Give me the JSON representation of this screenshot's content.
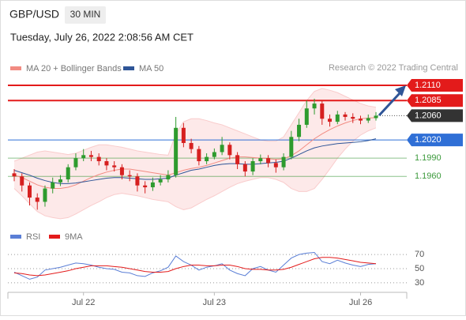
{
  "chart_data": {
    "type": "candlestick",
    "title": "GBP/USD",
    "interval": "30 MIN",
    "subtitle": "Tuesday, July 26, 2022 2:08:56 AM CET",
    "credit": "Research © 2022 Trading Central",
    "legend": [
      {
        "name": "MA 20 + Bollinger Bands",
        "color": "#f28b82"
      },
      {
        "name": "MA 50",
        "color": "#2f5597"
      }
    ],
    "categories": [
      null,
      null,
      null,
      null,
      null,
      null,
      null,
      null,
      null,
      "Jul 22",
      null,
      null,
      null,
      null,
      null,
      null,
      null,
      null,
      null,
      null,
      null,
      null,
      null,
      null,
      null,
      null,
      "Jul 23",
      null,
      null,
      null,
      null,
      null,
      null,
      null,
      null,
      null,
      null,
      null,
      null,
      null,
      null,
      null,
      null,
      null,
      null,
      "Jul 26",
      null,
      null
    ],
    "open": [
      1.1965,
      1.196,
      1.1945,
      1.1925,
      1.1918,
      1.194,
      1.195,
      1.1955,
      1.1975,
      1.199,
      1.1995,
      1.1992,
      1.1985,
      1.1978,
      1.1975,
      1.1962,
      1.196,
      1.1945,
      1.1942,
      1.195,
      1.1955,
      1.1962,
      1.204,
      1.2015,
      1.2005,
      1.1985,
      1.1992,
      1.2,
      1.2012,
      1.1995,
      1.198,
      1.1968,
      1.1985,
      1.199,
      1.1982,
      1.1975,
      1.1992,
      1.2025,
      1.2045,
      1.2072,
      1.208,
      1.2055,
      1.205,
      1.2062,
      1.2058,
      1.2055,
      1.2052,
      1.2056
    ],
    "high": [
      1.1972,
      1.1965,
      1.195,
      1.1932,
      1.1945,
      1.1958,
      1.1962,
      1.198,
      1.1998,
      1.2005,
      1.2002,
      1.1998,
      1.199,
      1.1985,
      1.198,
      1.197,
      1.1965,
      1.1952,
      1.1958,
      1.1962,
      1.197,
      1.2058,
      1.2048,
      1.2022,
      1.201,
      1.1998,
      1.2006,
      1.2025,
      1.2016,
      1.2,
      1.1985,
      1.199,
      1.1996,
      1.1995,
      1.1988,
      1.1998,
      1.2035,
      1.2055,
      1.2085,
      1.2088,
      1.2085,
      1.2062,
      1.2068,
      1.2066,
      1.2064,
      1.206,
      1.2062,
      1.2066
    ],
    "low": [
      1.1952,
      1.1935,
      1.1912,
      1.1905,
      1.191,
      1.1932,
      1.1944,
      1.195,
      1.197,
      1.1985,
      1.1985,
      1.1978,
      1.197,
      1.1968,
      1.1955,
      1.1952,
      1.1935,
      1.1932,
      1.1936,
      1.1945,
      1.195,
      1.1958,
      1.2008,
      1.1998,
      1.1978,
      1.198,
      1.1988,
      1.1995,
      1.1988,
      1.1972,
      1.196,
      1.1962,
      1.198,
      1.1975,
      1.1966,
      1.197,
      1.1988,
      1.2018,
      1.204,
      1.2062,
      1.2045,
      1.2042,
      1.2046,
      1.2052,
      1.2048,
      1.2046,
      1.2048,
      1.2052
    ],
    "close": [
      1.196,
      1.1945,
      1.1925,
      1.1918,
      1.194,
      1.195,
      1.1955,
      1.1975,
      1.199,
      1.1995,
      1.1992,
      1.1985,
      1.1978,
      1.1975,
      1.1962,
      1.196,
      1.1945,
      1.1942,
      1.195,
      1.1955,
      1.1962,
      1.204,
      1.2015,
      1.2005,
      1.1985,
      1.1992,
      1.2,
      1.2012,
      1.1995,
      1.198,
      1.1968,
      1.1985,
      1.199,
      1.1982,
      1.1975,
      1.1992,
      1.2025,
      1.2045,
      1.2072,
      1.208,
      1.2055,
      1.205,
      1.2062,
      1.2058,
      1.2055,
      1.2052,
      1.2056,
      1.206
    ],
    "ma20": [
      1.1962,
      1.1958,
      1.1952,
      1.1946,
      1.1942,
      1.194,
      1.194,
      1.1942,
      1.1946,
      1.1952,
      1.1958,
      1.1963,
      1.1967,
      1.197,
      1.1972,
      1.1972,
      1.197,
      1.1968,
      1.1966,
      1.1964,
      1.1962,
      1.1966,
      1.197,
      1.1973,
      1.1975,
      1.1978,
      1.1982,
      1.1986,
      1.199,
      1.1992,
      1.1992,
      1.1991,
      1.199,
      1.1989,
      1.1988,
      1.1989,
      1.1994,
      1.2002,
      1.2012,
      1.2022,
      1.203,
      1.2037,
      1.2043,
      1.2048,
      1.2052,
      1.2055,
      1.2056,
      1.2057
    ],
    "upper_band": [
      1.1985,
      1.199,
      1.1995,
      1.2,
      1.2002,
      1.2,
      1.1998,
      1.1996,
      1.1998,
      1.2003,
      1.2008,
      1.2012,
      1.2012,
      1.201,
      1.2008,
      1.2005,
      1.2002,
      1.2,
      1.1998,
      1.1996,
      1.1995,
      1.203,
      1.205,
      1.2055,
      1.2055,
      1.2052,
      1.2048,
      1.2045,
      1.204,
      1.2035,
      1.203,
      1.2025,
      1.202,
      1.2018,
      1.2018,
      1.2025,
      1.2045,
      1.2065,
      1.2085,
      1.21,
      1.2105,
      1.2102,
      1.2098,
      1.2092,
      1.2086,
      1.208,
      1.2076,
      1.2074
    ],
    "lower_band": [
      1.194,
      1.1928,
      1.1915,
      1.1902,
      1.1895,
      1.1892,
      1.189,
      1.1892,
      1.1898,
      1.1905,
      1.1912,
      1.1918,
      1.1925,
      1.193,
      1.1932,
      1.193,
      1.1928,
      1.1925,
      1.1922,
      1.192,
      1.1918,
      1.191,
      1.1905,
      1.1908,
      1.1915,
      1.1922,
      1.1928,
      1.1935,
      1.1942,
      1.1948,
      1.1952,
      1.1955,
      1.1958,
      1.1958,
      1.1955,
      1.195,
      1.194,
      1.1935,
      1.1935,
      1.194,
      1.1955,
      1.1972,
      1.199,
      1.2005,
      1.2018,
      1.2028,
      1.2035,
      1.204
    ],
    "ma50": [
      1.197,
      1.1966,
      1.1962,
      1.1957,
      1.1953,
      1.195,
      1.1948,
      1.1948,
      1.1949,
      1.1951,
      1.1953,
      1.1955,
      1.1957,
      1.1958,
      1.1958,
      1.1957,
      1.1956,
      1.1955,
      1.1955,
      1.1956,
      1.1957,
      1.1962,
      1.1966,
      1.197,
      1.1972,
      1.1975,
      1.1978,
      1.198,
      1.1981,
      1.1981,
      1.198,
      1.198,
      1.1981,
      1.1982,
      1.1983,
      1.1985,
      1.199,
      1.1996,
      1.2002,
      1.2007,
      1.201,
      1.2012,
      1.2014,
      1.2015,
      1.2016,
      1.2017,
      1.2019,
      1.2022
    ],
    "ylim": [
      1.1886,
      1.2127
    ],
    "up_color": "#2e9b2e",
    "down_color": "#d62020",
    "levels": [
      {
        "value": 1.211,
        "label": "1.2110",
        "color": "#e31b1b",
        "style": "box"
      },
      {
        "value": 1.2085,
        "label": "1.2085",
        "color": "#e31b1b",
        "style": "box"
      },
      {
        "value": 1.206,
        "label": "1.2060",
        "color": "#333333",
        "style": "dotted"
      },
      {
        "value": 1.202,
        "label": "1.2020",
        "color": "#2f6fd6",
        "style": "box"
      },
      {
        "value": 1.199,
        "label": "1.1990",
        "color": "#3c9a3c",
        "style": "text"
      },
      {
        "value": 1.196,
        "label": "1.1960",
        "color": "#3c9a3c",
        "style": "text"
      }
    ],
    "rsi": {
      "legend": [
        {
          "name": "RSI",
          "color": "#5b7fd6"
        },
        {
          "name": "9MA",
          "color": "#e31b1b"
        }
      ],
      "values": [
        45,
        40,
        35,
        38,
        48,
        50,
        52,
        55,
        58,
        57,
        55,
        52,
        50,
        49,
        45,
        44,
        40,
        39,
        44,
        47,
        52,
        68,
        60,
        55,
        48,
        52,
        54,
        57,
        48,
        43,
        40,
        50,
        53,
        48,
        45,
        55,
        65,
        70,
        72,
        73,
        60,
        57,
        62,
        58,
        55,
        53,
        56,
        57
      ],
      "ma9": [
        44,
        43,
        41,
        40,
        41,
        43,
        45,
        47,
        50,
        52,
        54,
        54,
        54,
        53,
        52,
        50,
        48,
        46,
        45,
        45,
        46,
        50,
        53,
        55,
        55,
        54,
        54,
        55,
        55,
        53,
        50,
        49,
        49,
        48,
        48,
        49,
        52,
        56,
        60,
        64,
        66,
        66,
        65,
        63,
        61,
        59,
        58,
        57
      ],
      "ylim": [
        22,
        78
      ],
      "yticks": [
        70,
        50,
        30
      ]
    }
  }
}
